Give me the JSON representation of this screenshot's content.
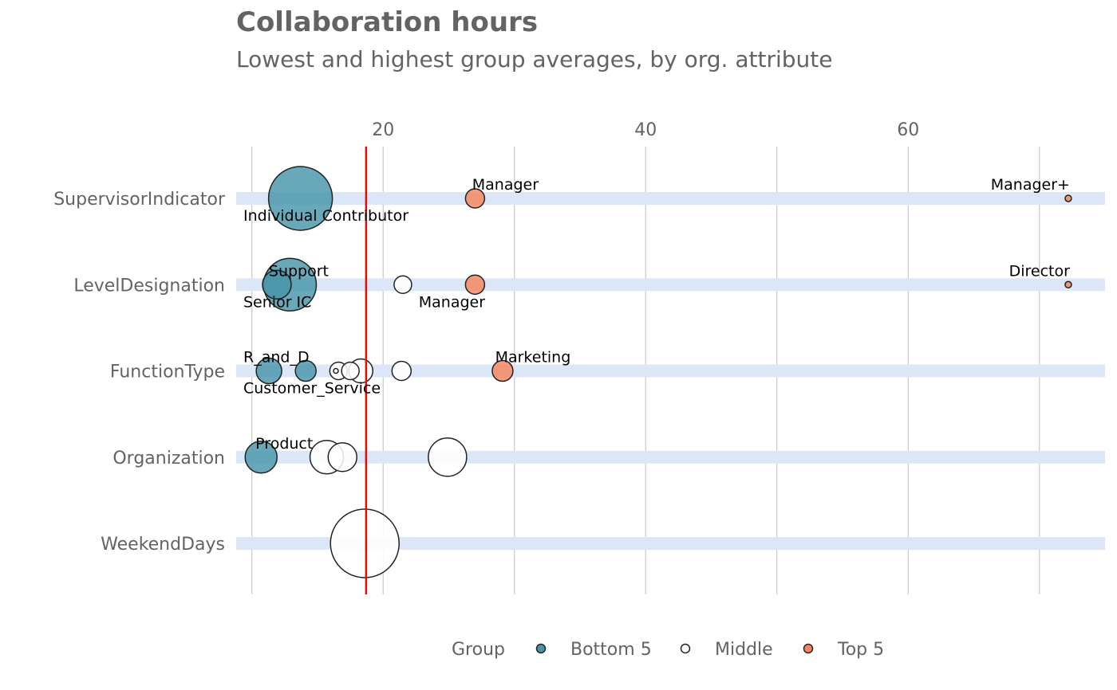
{
  "chart_data": {
    "type": "scatter",
    "title": "Collaboration hours",
    "subtitle": "Lowest and highest group averages, by org. attribute",
    "xlim": [
      8.8,
      75
    ],
    "x_ticks": [
      20,
      40,
      60
    ],
    "x_gridlines": [
      10,
      20,
      30,
      40,
      50,
      60,
      70
    ],
    "reference_line": {
      "value": 18.7,
      "color": "#ff0000"
    },
    "categories": [
      "SupervisorIndicator",
      "LevelDesignation",
      "FunctionType",
      "Organization",
      "WeekendDays"
    ],
    "groups": [
      {
        "name": "Bottom 5",
        "color": "#4795a8"
      },
      {
        "name": "Middle",
        "color": "#ffffff"
      },
      {
        "name": "Top 5",
        "color": "#f7845e"
      }
    ],
    "legend": {
      "title": "Group",
      "position": "bottom"
    },
    "points": [
      {
        "category": "SupervisorIndicator",
        "x": 13.7,
        "size": 40,
        "group": "Bottom 5",
        "label": "Individual Contributor",
        "label_pos": "below"
      },
      {
        "category": "SupervisorIndicator",
        "x": 27.0,
        "size": 12,
        "group": "Top 5",
        "label": "Manager",
        "label_pos": "above"
      },
      {
        "category": "SupervisorIndicator",
        "x": 72.2,
        "size": 4,
        "group": "Top 5",
        "label": "Manager+",
        "label_pos": "above-left"
      },
      {
        "category": "LevelDesignation",
        "x": 12.9,
        "size": 33,
        "group": "Bottom 5",
        "label": "Support",
        "label_pos": "above"
      },
      {
        "category": "LevelDesignation",
        "x": 11.9,
        "size": 18,
        "group": "Bottom 5",
        "label": "Senior IC",
        "label_pos": "below"
      },
      {
        "category": "LevelDesignation",
        "x": 21.5,
        "size": 11,
        "group": "Middle",
        "label": "",
        "label_pos": "none"
      },
      {
        "category": "LevelDesignation",
        "x": 27.0,
        "size": 12,
        "group": "Top 5",
        "label": "Manager",
        "label_pos": "below-left"
      },
      {
        "category": "LevelDesignation",
        "x": 72.2,
        "size": 4,
        "group": "Top 5",
        "label": "Director",
        "label_pos": "above-left"
      },
      {
        "category": "FunctionType",
        "x": 11.3,
        "size": 16,
        "group": "Bottom 5",
        "label": "R_and_D",
        "label_pos": "above-left"
      },
      {
        "category": "FunctionType",
        "x": 14.1,
        "size": 13,
        "group": "Bottom 5",
        "label": "Customer_Service",
        "label_pos": "below-left"
      },
      {
        "category": "FunctionType",
        "x": 16.6,
        "size": 11,
        "group": "Middle",
        "label": "",
        "label_pos": "none"
      },
      {
        "category": "FunctionType",
        "x": 17.5,
        "size": 11,
        "group": "Middle",
        "label": "",
        "label_pos": "none"
      },
      {
        "category": "FunctionType",
        "x": 18.3,
        "size": 15,
        "group": "Middle",
        "label": "",
        "label_pos": "none"
      },
      {
        "category": "FunctionType",
        "x": 21.4,
        "size": 12,
        "group": "Middle",
        "label": "",
        "label_pos": "none"
      },
      {
        "category": "FunctionType",
        "x": 16.4,
        "size": 3,
        "group": "Middle",
        "label": "",
        "label_pos": "none"
      },
      {
        "category": "FunctionType",
        "x": 29.1,
        "size": 13,
        "group": "Top 5",
        "label": "Marketing",
        "label_pos": "above"
      },
      {
        "category": "Organization",
        "x": 10.7,
        "size": 20,
        "group": "Bottom 5",
        "label": "Product",
        "label_pos": "above"
      },
      {
        "category": "Organization",
        "x": 15.7,
        "size": 21,
        "group": "Middle",
        "label": "",
        "label_pos": "none"
      },
      {
        "category": "Organization",
        "x": 16.9,
        "size": 18,
        "group": "Middle",
        "label": "",
        "label_pos": "none"
      },
      {
        "category": "Organization",
        "x": 24.9,
        "size": 24,
        "group": "Middle",
        "label": "",
        "label_pos": "none"
      },
      {
        "category": "WeekendDays",
        "x": 18.6,
        "size": 43,
        "group": "Middle",
        "label": "",
        "label_pos": "none"
      }
    ]
  }
}
